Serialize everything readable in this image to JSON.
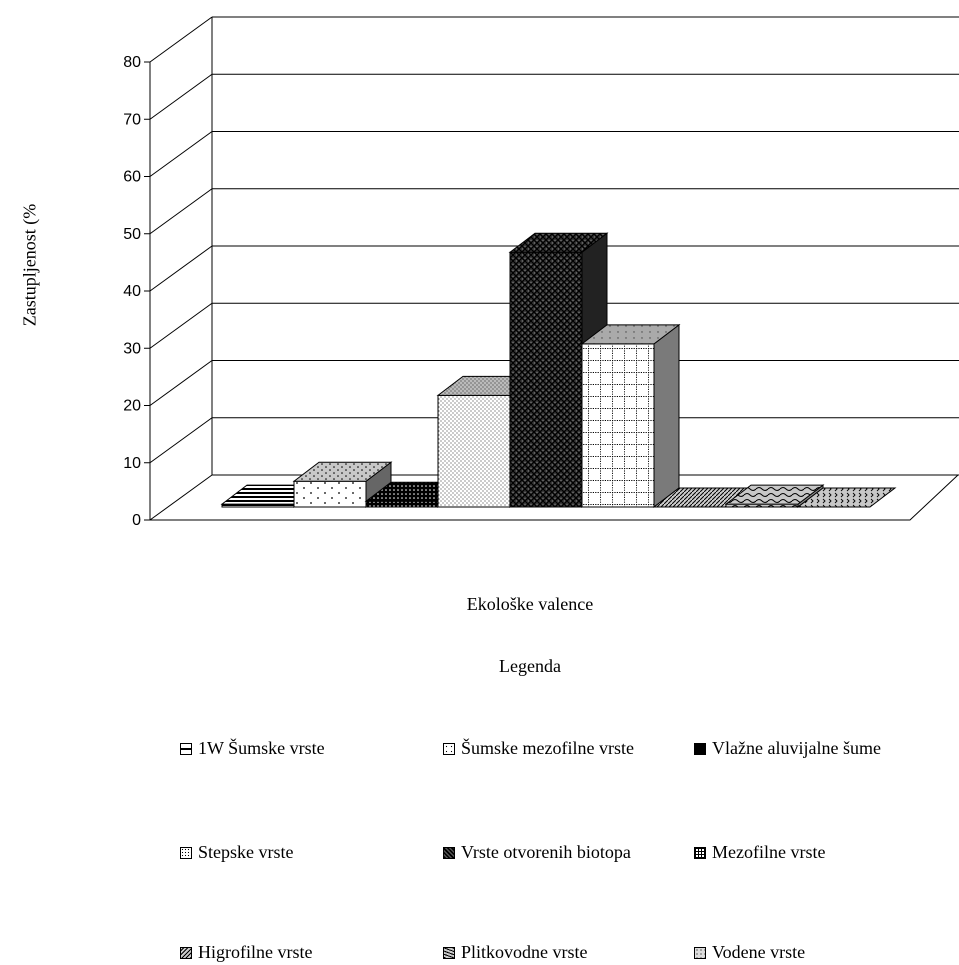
{
  "chart_data": {
    "type": "bar",
    "ylabel": "Zastupljenost (%",
    "xlabel": "Ekološke valence",
    "ylim": [
      0,
      80
    ],
    "yticks": [
      "0",
      "10",
      "20",
      "30",
      "40",
      "50",
      "60",
      "70",
      "80"
    ],
    "grid": true,
    "legend_title": "Legenda",
    "legend_position": "bottom",
    "series": [
      {
        "name": "1W Šumske vrste",
        "value": 0.5
      },
      {
        "name": "Šumske mezofilne vrste",
        "value": 4.5
      },
      {
        "name": "Vlažne aluvijalne šume",
        "value": 1
      },
      {
        "name": "Stepske vrste",
        "value": 19.5
      },
      {
        "name": "Vrste otvorenih biotopa",
        "value": 44.5
      },
      {
        "name": "Mezofilne vrste",
        "value": 28.5
      },
      {
        "name": "Higrofilne vrste",
        "value": 0
      },
      {
        "name": "Plitkovodne vrste",
        "value": 0.5
      },
      {
        "name": "Vodene vrste",
        "value": 0
      }
    ]
  }
}
